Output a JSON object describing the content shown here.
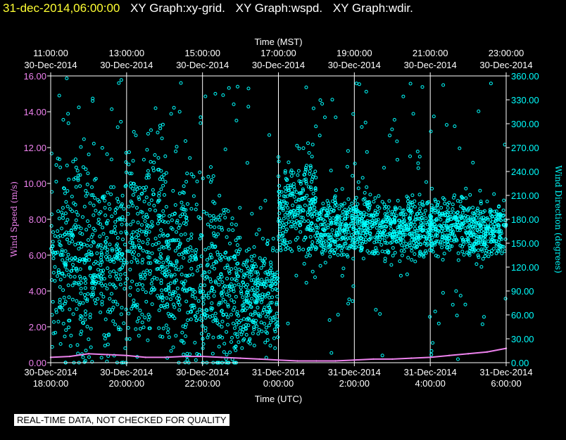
{
  "header": {
    "timestamp": "31-dec-2014,06:00:00",
    "graphs": [
      "XY Graph:xy-grid.",
      "XY Graph:wspd.",
      "XY Graph:wdir."
    ]
  },
  "note": "REAL-TIME DATA, NOT CHECKED FOR QUALITY",
  "colors": {
    "background": "#000000",
    "speed": "#ee82ee",
    "direction": "#00ffff",
    "timestamp": "#ffff33",
    "grid": "#ffffff"
  },
  "chart_data": {
    "type": "scatter",
    "top_axis": {
      "label": "Time (MST)",
      "ticks": [
        {
          "time": "11:00:00",
          "date": "30-Dec-2014"
        },
        {
          "time": "13:00:00",
          "date": "30-Dec-2014"
        },
        {
          "time": "15:00:00",
          "date": "30-Dec-2014"
        },
        {
          "time": "17:00:00",
          "date": "30-Dec-2014"
        },
        {
          "time": "19:00:00",
          "date": "30-Dec-2014"
        },
        {
          "time": "21:00:00",
          "date": "30-Dec-2014"
        },
        {
          "time": "23:00:00",
          "date": "30-Dec-2014"
        }
      ]
    },
    "bottom_axis": {
      "label": "Time (UTC)",
      "ticks": [
        {
          "date": "30-Dec-2014",
          "time": "18:00:00"
        },
        {
          "date": "30-Dec-2014",
          "time": "20:00:00"
        },
        {
          "date": "30-Dec-2014",
          "time": "22:00:00"
        },
        {
          "date": "31-Dec-2014",
          "time": "0:00:00"
        },
        {
          "date": "31-Dec-2014",
          "time": "2:00:00"
        },
        {
          "date": "31-Dec-2014",
          "time": "4:00:00"
        },
        {
          "date": "31-Dec-2014",
          "time": "6:00:00"
        }
      ],
      "range_hours_utc": [
        18,
        30
      ]
    },
    "y_left": {
      "label": "Wind Speed (m/s)",
      "ylim": [
        0,
        16
      ],
      "ticks": [
        "0.00",
        "2.00",
        "4.00",
        "6.00",
        "8.00",
        "10.00",
        "12.00",
        "14.00",
        "16.00"
      ]
    },
    "y_right": {
      "label": "Wind Direction (degrees)",
      "ylim": [
        0,
        360
      ],
      "ticks": [
        "0.00",
        "30.00",
        "60.00",
        "90.00",
        "120.00",
        "150.00",
        "180.00",
        "210.00",
        "240.00",
        "270.00",
        "300.00",
        "330.00",
        "360.00"
      ]
    },
    "grid": "vertical lines at bottom-axis ticks",
    "series": [
      {
        "name": "wspd",
        "axis": "left",
        "style": "line",
        "x_hours": [
          18,
          18.5,
          19,
          19.5,
          20,
          20.5,
          21,
          21.5,
          22,
          22.5,
          23,
          23.5,
          24,
          24.5,
          25,
          25.5,
          26,
          26.5,
          27,
          27.5,
          28,
          28.5,
          29,
          29.5,
          30
        ],
        "y": [
          0.3,
          0.35,
          0.5,
          0.45,
          0.4,
          0.3,
          0.3,
          0.35,
          0.35,
          0.3,
          0.25,
          0.2,
          0.15,
          0.1,
          0.1,
          0.1,
          0.15,
          0.2,
          0.2,
          0.25,
          0.3,
          0.4,
          0.5,
          0.6,
          0.8
        ]
      },
      {
        "name": "wdir",
        "axis": "right",
        "style": "scatter",
        "segments": [
          {
            "x": [
              18,
              19
            ],
            "center": 135,
            "spread": 120
          },
          {
            "x": [
              19,
              20
            ],
            "center": 120,
            "spread": 110
          },
          {
            "x": [
              20,
              21
            ],
            "center": 150,
            "spread": 130
          },
          {
            "x": [
              21,
              22
            ],
            "center": 120,
            "spread": 120
          },
          {
            "x": [
              22,
              23
            ],
            "center": 100,
            "spread": 110
          },
          {
            "x": [
              23,
              24
            ],
            "center": 85,
            "spread": 60
          },
          {
            "x": [
              24,
              25
            ],
            "center": 195,
            "spread": 60
          },
          {
            "x": [
              25,
              26
            ],
            "center": 170,
            "spread": 40
          },
          {
            "x": [
              26,
              27
            ],
            "center": 170,
            "spread": 35
          },
          {
            "x": [
              27,
              28
            ],
            "center": 170,
            "spread": 35
          },
          {
            "x": [
              28,
              29
            ],
            "center": 170,
            "spread": 35
          },
          {
            "x": [
              29,
              30
            ],
            "center": 165,
            "spread": 35
          }
        ]
      }
    ]
  }
}
